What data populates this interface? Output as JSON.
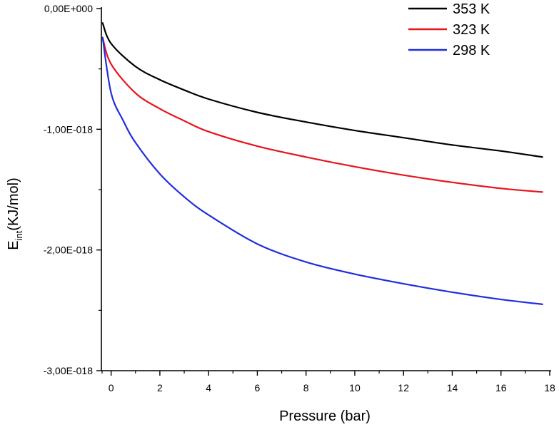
{
  "chart_data": {
    "type": "line",
    "title": "",
    "xlabel": "Pressure (bar)",
    "ylabel_main": "E",
    "ylabel_sub": "int",
    "ylabel_unit": "(KJ/mol)",
    "xlim": [
      -0.4,
      18
    ],
    "ylim": [
      -3e-18,
      0
    ],
    "xticks": [
      0,
      2,
      4,
      6,
      8,
      10,
      12,
      14,
      16,
      18
    ],
    "xtick_labels": [
      "0",
      "2",
      "4",
      "6",
      "8",
      "10",
      "12",
      "14",
      "16",
      "18"
    ],
    "yticks": [
      0,
      -1e-18,
      -2e-18,
      -3e-18
    ],
    "ytick_labels": [
      "0,00E+000",
      "-1,00E-018",
      "-2,00E-018",
      "-3,00E-018"
    ],
    "legend_position": "top-right",
    "grid": false,
    "series": [
      {
        "name": "353 K",
        "color": "#000000",
        "x": [
          -0.35,
          0,
          1,
          2,
          3,
          4,
          6,
          8,
          10,
          12,
          14,
          16,
          17.7
        ],
        "values": [
          -1.2e-19,
          -2.9e-19,
          -4.8e-19,
          -5.9e-19,
          -6.75e-19,
          -7.5e-19,
          -8.6e-19,
          -9.4e-19,
          -1.01e-18,
          -1.07e-18,
          -1.13e-18,
          -1.18e-18,
          -1.23e-18
        ]
      },
      {
        "name": "323 K",
        "color": "#e8141c",
        "x": [
          -0.35,
          0,
          1,
          2,
          3,
          4,
          6,
          8,
          10,
          12,
          14,
          16,
          17.7
        ],
        "values": [
          -2.4e-19,
          -4.6e-19,
          -7e-19,
          -8.3e-19,
          -9.3e-19,
          -1.02e-18,
          -1.14e-18,
          -1.23e-18,
          -1.31e-18,
          -1.38e-18,
          -1.44e-18,
          -1.49e-18,
          -1.52e-18
        ]
      },
      {
        "name": "298 K",
        "color": "#1f2ee0",
        "x": [
          -0.35,
          0,
          0.5,
          1,
          2,
          3,
          4,
          6,
          8,
          10,
          12,
          14,
          16,
          17.7
        ],
        "values": [
          -2.4e-19,
          -7e-19,
          -9.3e-19,
          -1.11e-18,
          -1.37e-18,
          -1.56e-18,
          -1.71e-18,
          -1.95e-18,
          -2.1e-18,
          -2.2e-18,
          -2.28e-18,
          -2.35e-18,
          -2.41e-18,
          -2.45e-18
        ]
      }
    ]
  }
}
